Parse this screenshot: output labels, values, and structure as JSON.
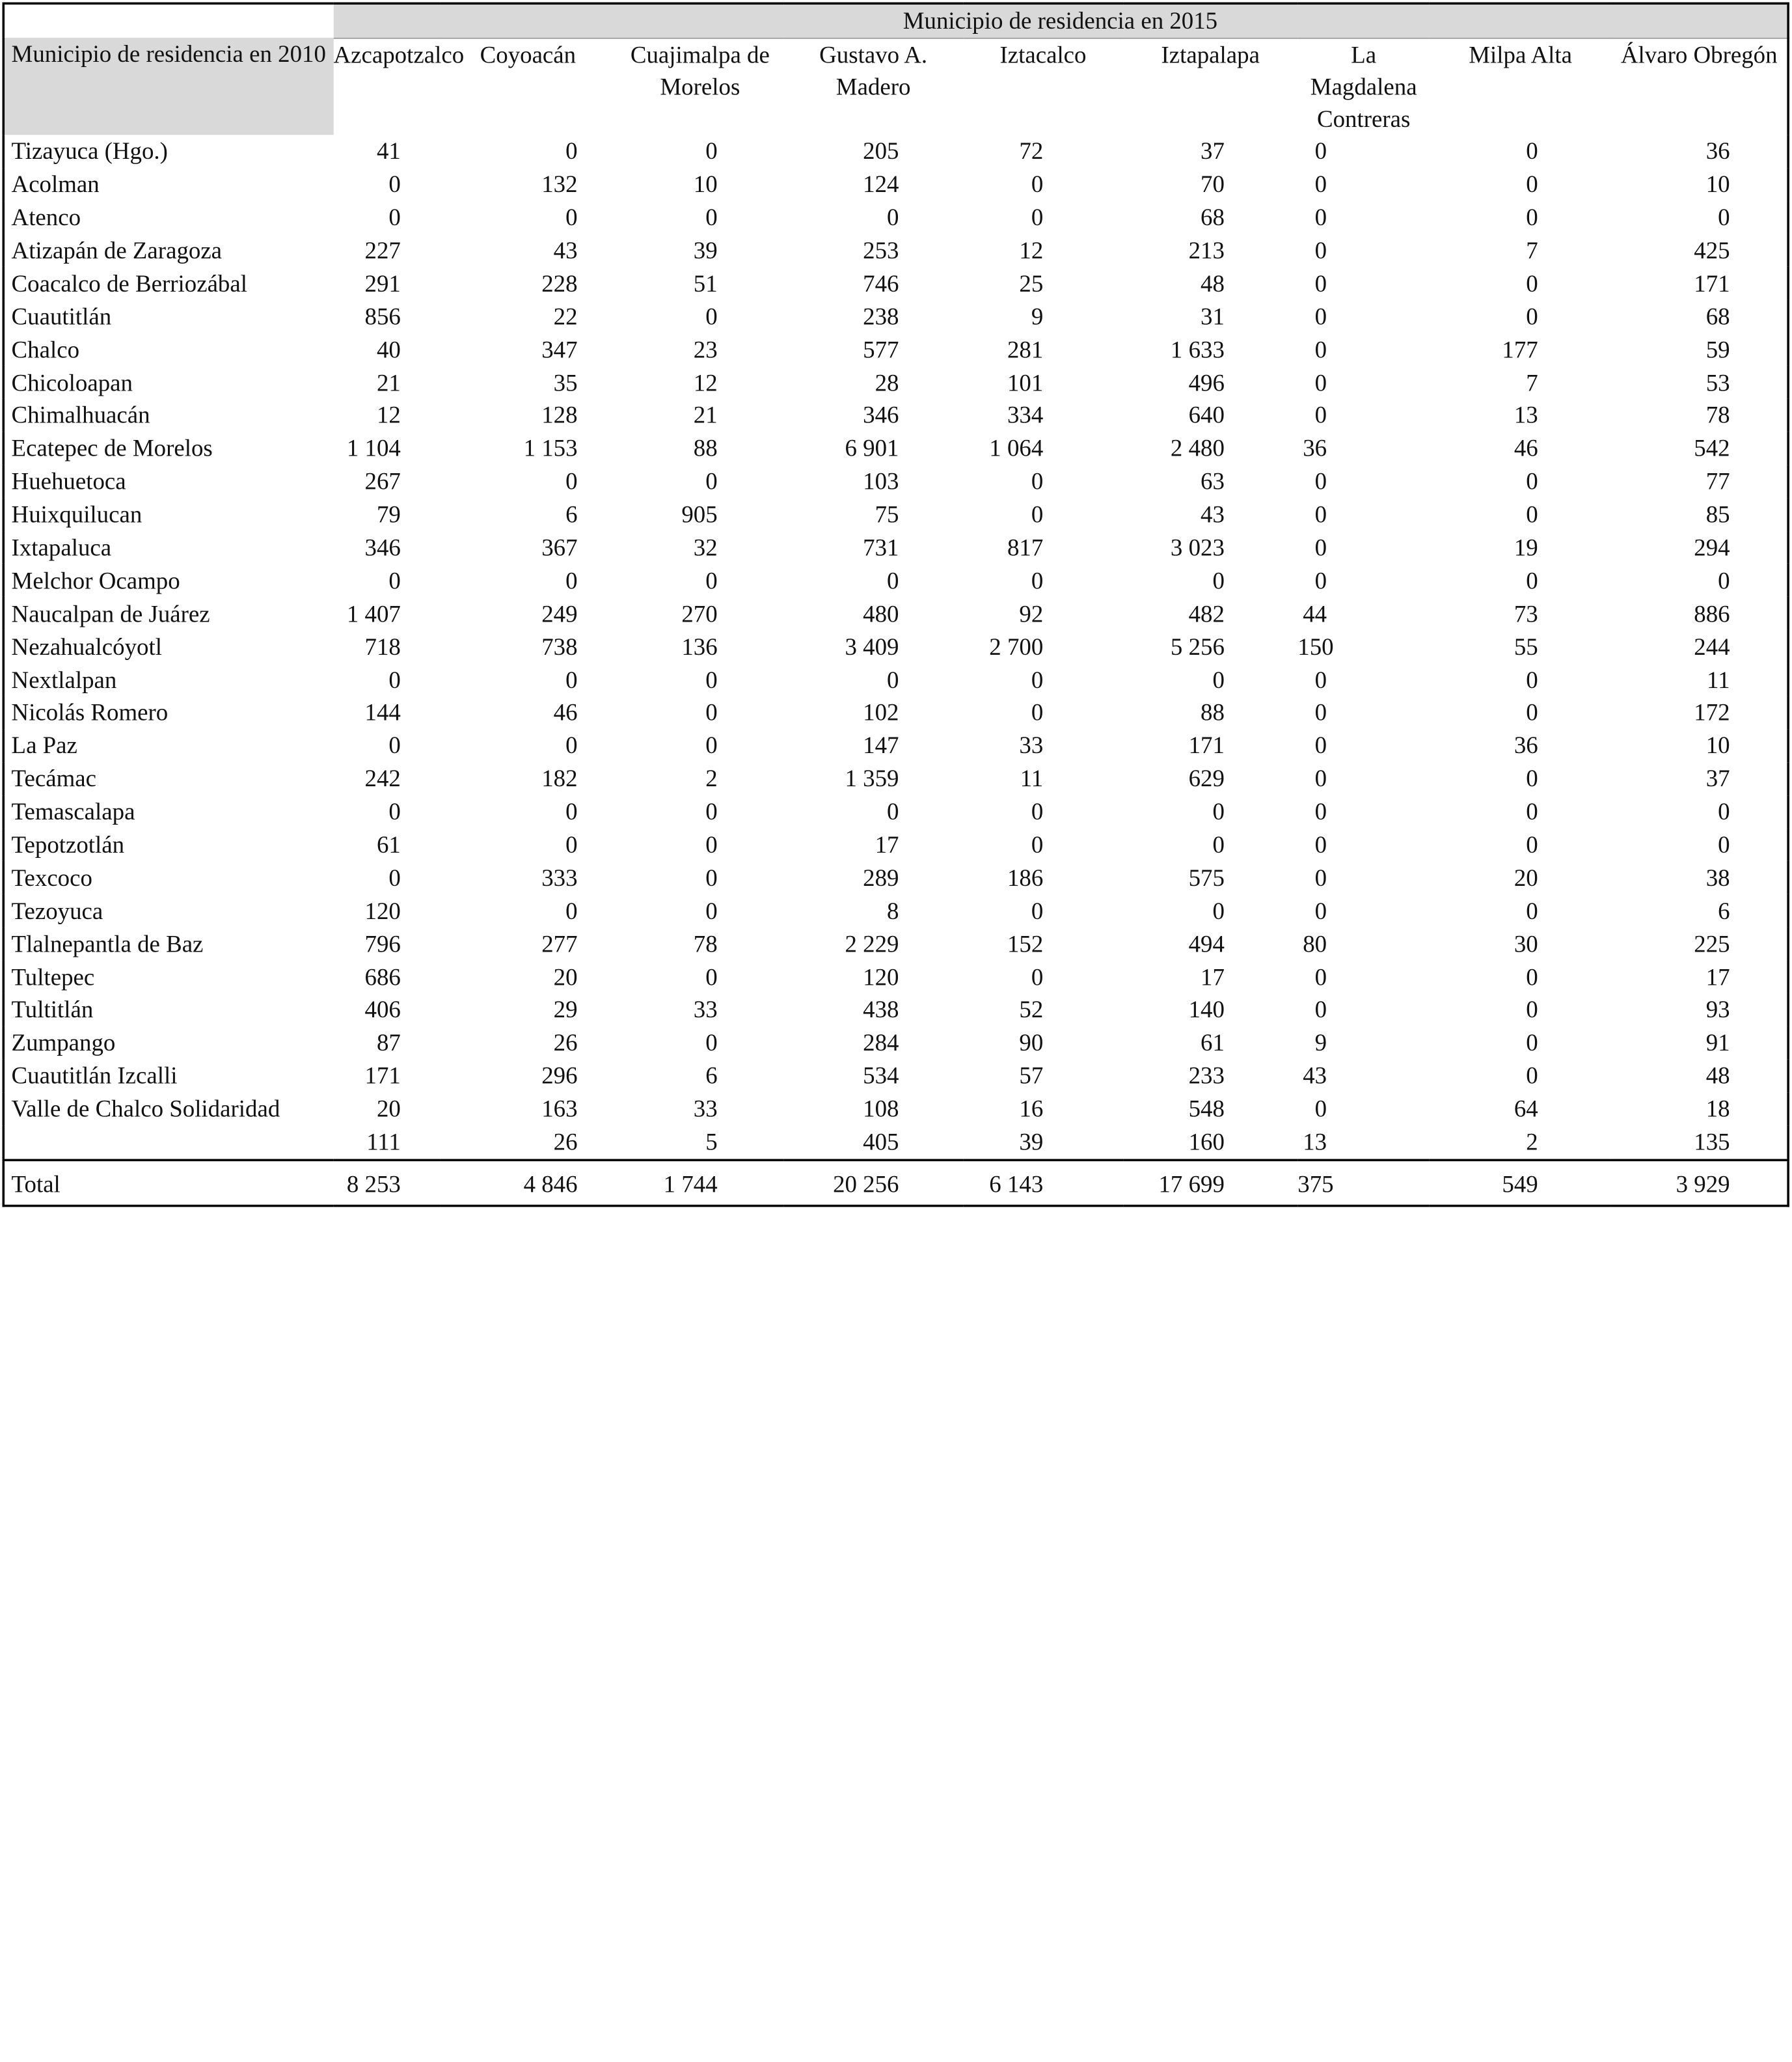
{
  "super_header": "Municipio de residencia en 2015",
  "row_header": "Municipio de residencia en 2010",
  "columns": [
    "Azcapotzalco",
    "Coyoacán",
    "Cuajimalpa de Morelos",
    "Gustavo A. Madero",
    "Iztacalco",
    "Iztapalapa",
    "La Magdalena Contreras",
    "Milpa Alta",
    "Álvaro Obregón"
  ],
  "rows": [
    {
      "name": "Tizayuca (Hgo.)",
      "values": [
        "41",
        "0",
        "0",
        "205",
        "72",
        "37",
        "0",
        "0",
        "36"
      ]
    },
    {
      "name": "Acolman",
      "values": [
        "0",
        "132",
        "10",
        "124",
        "0",
        "70",
        "0",
        "0",
        "10"
      ]
    },
    {
      "name": "Atenco",
      "values": [
        "0",
        "0",
        "0",
        "0",
        "0",
        "68",
        "0",
        "0",
        "0"
      ]
    },
    {
      "name": "Atizapán de Zaragoza",
      "values": [
        "227",
        "43",
        "39",
        "253",
        "12",
        "213",
        "0",
        "7",
        "425"
      ]
    },
    {
      "name": "Coacalco de Berriozábal",
      "values": [
        "291",
        "228",
        "51",
        "746",
        "25",
        "48",
        "0",
        "0",
        "171"
      ]
    },
    {
      "name": "Cuautitlán",
      "values": [
        "856",
        "22",
        "0",
        "238",
        "9",
        "31",
        "0",
        "0",
        "68"
      ]
    },
    {
      "name": "Chalco",
      "values": [
        "40",
        "347",
        "23",
        "577",
        "281",
        "1 633",
        "0",
        "177",
        "59"
      ]
    },
    {
      "name": "Chicoloapan",
      "values": [
        "21",
        "35",
        "12",
        "28",
        "101",
        "496",
        "0",
        "7",
        "53"
      ]
    },
    {
      "name": "Chimalhuacán",
      "values": [
        "12",
        "128",
        "21",
        "346",
        "334",
        "640",
        "0",
        "13",
        "78"
      ]
    },
    {
      "name": "Ecatepec de Morelos",
      "values": [
        "1 104",
        "1 153",
        "88",
        "6 901",
        "1 064",
        "2 480",
        "36",
        "46",
        "542"
      ]
    },
    {
      "name": "Huehuetoca",
      "values": [
        "267",
        "0",
        "0",
        "103",
        "0",
        "63",
        "0",
        "0",
        "77"
      ]
    },
    {
      "name": "Huixquilucan",
      "values": [
        "79",
        "6",
        "905",
        "75",
        "0",
        "43",
        "0",
        "0",
        "85"
      ]
    },
    {
      "name": "Ixtapaluca",
      "values": [
        "346",
        "367",
        "32",
        "731",
        "817",
        "3 023",
        "0",
        "19",
        "294"
      ]
    },
    {
      "name": "Melchor Ocampo",
      "values": [
        "0",
        "0",
        "0",
        "0",
        "0",
        "0",
        "0",
        "0",
        "0"
      ]
    },
    {
      "name": "Naucalpan de Juárez",
      "values": [
        "1 407",
        "249",
        "270",
        "480",
        "92",
        "482",
        "44",
        "73",
        "886"
      ]
    },
    {
      "name": "Nezahualcóyotl",
      "values": [
        "718",
        "738",
        "136",
        "3 409",
        "2 700",
        "5 256",
        "150",
        "55",
        "244"
      ]
    },
    {
      "name": "Nextlalpan",
      "values": [
        "0",
        "0",
        "0",
        "0",
        "0",
        "0",
        "0",
        "0",
        "11"
      ]
    },
    {
      "name": "Nicolás Romero",
      "values": [
        "144",
        "46",
        "0",
        "102",
        "0",
        "88",
        "0",
        "0",
        "172"
      ]
    },
    {
      "name": "La Paz",
      "values": [
        "0",
        "0",
        "0",
        "147",
        "33",
        "171",
        "0",
        "36",
        "10"
      ]
    },
    {
      "name": "Tecámac",
      "values": [
        "242",
        "182",
        "2",
        "1 359",
        "11",
        "629",
        "0",
        "0",
        "37"
      ]
    },
    {
      "name": "Temascalapa",
      "values": [
        "0",
        "0",
        "0",
        "0",
        "0",
        "0",
        "0",
        "0",
        "0"
      ]
    },
    {
      "name": "Tepotzotlán",
      "values": [
        "61",
        "0",
        "0",
        "17",
        "0",
        "0",
        "0",
        "0",
        "0"
      ]
    },
    {
      "name": "Texcoco",
      "values": [
        "0",
        "333",
        "0",
        "289",
        "186",
        "575",
        "0",
        "20",
        "38"
      ]
    },
    {
      "name": "Tezoyuca",
      "values": [
        "120",
        "0",
        "0",
        "8",
        "0",
        "0",
        "0",
        "0",
        "6"
      ]
    },
    {
      "name": "Tlalnepantla de Baz",
      "values": [
        "796",
        "277",
        "78",
        "2 229",
        "152",
        "494",
        "80",
        "30",
        "225"
      ]
    },
    {
      "name": "Tultepec",
      "values": [
        "686",
        "20",
        "0",
        "120",
        "0",
        "17",
        "0",
        "0",
        "17"
      ]
    },
    {
      "name": "Tultitlán",
      "values": [
        "406",
        "29",
        "33",
        "438",
        "52",
        "140",
        "0",
        "0",
        "93"
      ]
    },
    {
      "name": "Zumpango",
      "values": [
        "87",
        "26",
        "0",
        "284",
        "90",
        "61",
        "9",
        "0",
        "91"
      ]
    },
    {
      "name": "Cuautitlán Izcalli",
      "values": [
        "171",
        "296",
        "6",
        "534",
        "57",
        "233",
        "43",
        "0",
        "48"
      ]
    },
    {
      "name": "Valle de Chalco Solidaridad",
      "values": [
        "20",
        "163",
        "33",
        "108",
        "16",
        "548",
        "0",
        "64",
        "18"
      ]
    },
    {
      "name": "",
      "values": [
        "111",
        "26",
        "5",
        "405",
        "39",
        "160",
        "13",
        "2",
        "135"
      ]
    }
  ],
  "total": {
    "label": "Total",
    "values": [
      "8 253",
      "4 846",
      "1 744",
      "20 256",
      "6 143",
      "17 699",
      "375",
      "549",
      "3 929"
    ]
  }
}
